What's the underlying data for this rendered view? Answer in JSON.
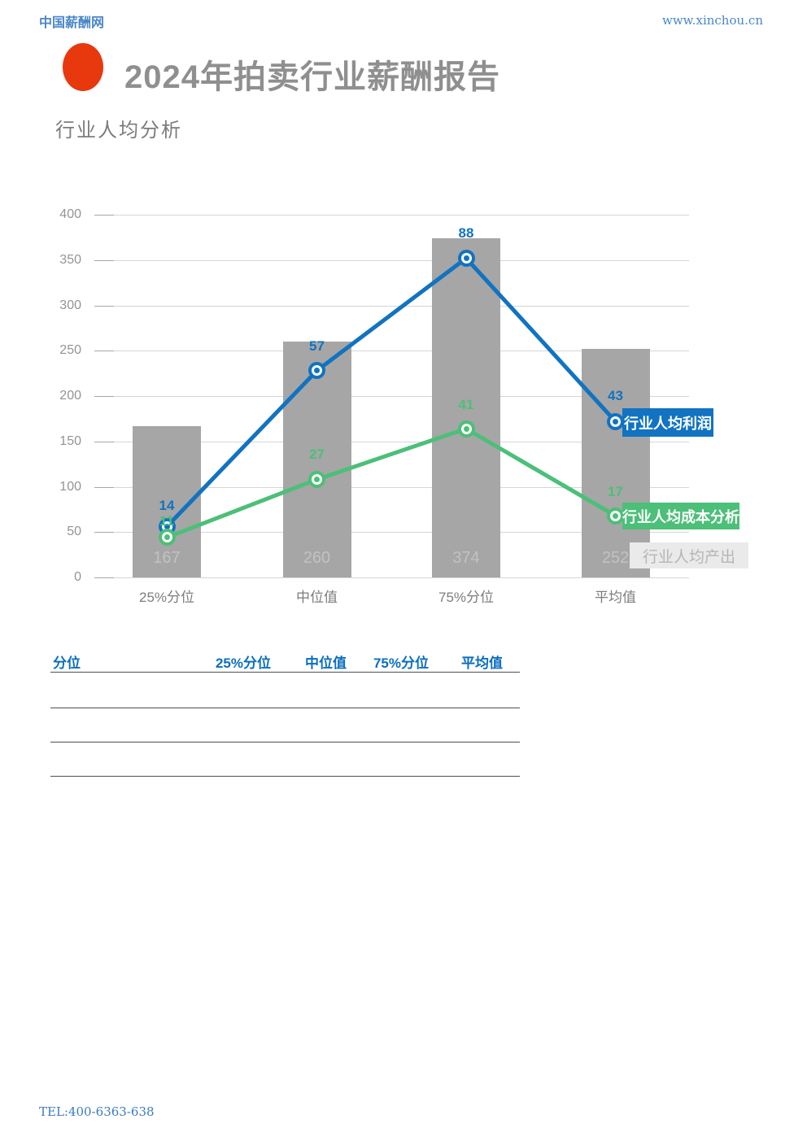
{
  "header": {
    "site_name": "中国薪酬网",
    "site_url": "www.xinchou.cn"
  },
  "report": {
    "title": "2024年拍卖行业薪酬报告",
    "section_title": "行业人均分析"
  },
  "chart_data": {
    "type": "combo-bar-line",
    "categories": [
      "25%分位",
      "中位值",
      "75%分位",
      "平均值"
    ],
    "series": [
      {
        "name": "行业人均产出",
        "type": "bar",
        "axis": "primary",
        "values": [
          167,
          260,
          374,
          252
        ],
        "color": "#a6a6a6"
      },
      {
        "name": "行业人均利润",
        "type": "line",
        "axis": "secondary",
        "values": [
          14,
          57,
          88,
          43
        ],
        "color": "#1173c1"
      },
      {
        "name": "行业人均成本分析",
        "type": "line",
        "axis": "secondary",
        "values": [
          11,
          27,
          41,
          17
        ],
        "color": "#4cbf78"
      }
    ],
    "title": "行业人均分析",
    "xlabel": "",
    "ylabel": "",
    "ylim": [
      0,
      400
    ],
    "ytick_step": 50,
    "yticks": [
      0,
      50,
      100,
      150,
      200,
      250,
      300,
      350,
      400
    ],
    "secondary_ylim": [
      0,
      100
    ],
    "grid": true,
    "legend_position": "right-inline-badges"
  },
  "table": {
    "headers": [
      "分位",
      "25%分位",
      "中位值",
      "75%分位",
      "平均值"
    ],
    "rows": [
      [
        "",
        "",
        "",
        "",
        ""
      ],
      [
        "",
        "",
        "",
        "",
        ""
      ],
      [
        "",
        "",
        "",
        "",
        ""
      ]
    ]
  },
  "footer": {
    "tel": "TEL:400-6363-638"
  },
  "colors": {
    "profit_blue": "#1173c1",
    "cost_green": "#4cbf78",
    "output_gray": "#a6a6a6",
    "accent_red": "#e8380d",
    "header_link_blue": "#4a87c9",
    "table_header_blue": "#0b6ec0"
  }
}
